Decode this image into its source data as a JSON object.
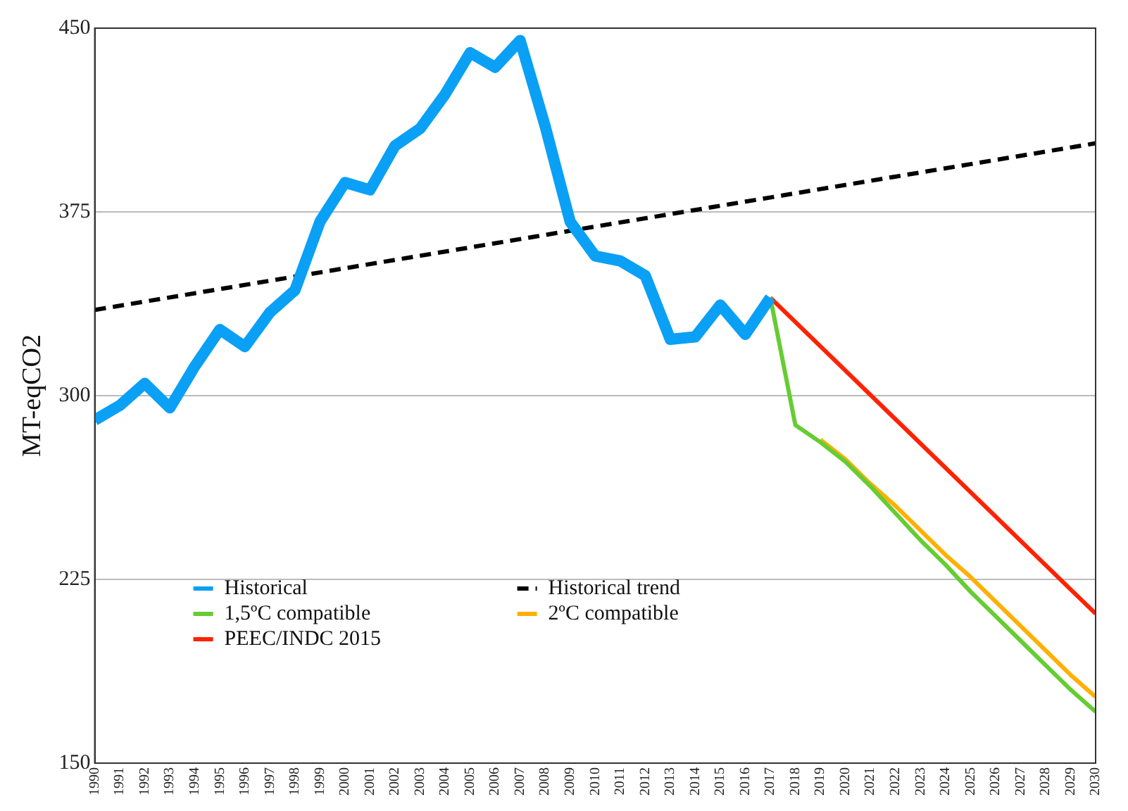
{
  "chart_data": {
    "type": "line",
    "ylabel": "MT-eqCO2",
    "xlim": [
      1990,
      2030
    ],
    "xticks": [
      1990,
      1991,
      1992,
      1993,
      1994,
      1995,
      1996,
      1997,
      1998,
      1999,
      2000,
      2001,
      2002,
      2003,
      2004,
      2005,
      2006,
      2007,
      2008,
      2009,
      2010,
      2011,
      2012,
      2013,
      2014,
      2015,
      2016,
      2017,
      2018,
      2019,
      2020,
      2021,
      2022,
      2023,
      2024,
      2025,
      2026,
      2027,
      2028,
      2029,
      2030
    ],
    "ylim": [
      150,
      450
    ],
    "yticks": [
      150,
      225,
      300,
      375,
      450
    ],
    "grid": "y",
    "legend": "bottom left",
    "marker": "none",
    "series": [
      {
        "name": "Historical",
        "color": "#0aa0f5",
        "x": [
          1990,
          1991,
          1992,
          1993,
          1994,
          1995,
          1996,
          1997,
          1998,
          1999,
          2000,
          2001,
          2002,
          2003,
          2004,
          2005,
          2006,
          2007,
          2008,
          2009,
          2010,
          2011,
          2012,
          2013,
          2014,
          2015,
          2016,
          2017
        ],
        "values": [
          290,
          296,
          305,
          295,
          312,
          327,
          320,
          334,
          343,
          371,
          387,
          384,
          402,
          409,
          423,
          440,
          434,
          445,
          410,
          371,
          357,
          355,
          349,
          323,
          324,
          337,
          325,
          340
        ]
      },
      {
        "name": "1,5ºC compatible",
        "color": "#66cc33",
        "x": [
          2017,
          2018,
          2019,
          2020,
          2021,
          2022,
          2023,
          2024,
          2025,
          2026,
          2027,
          2028,
          2029,
          2030
        ],
        "values": [
          340,
          288,
          281,
          273,
          263,
          252,
          241,
          231,
          220,
          210,
          200,
          190,
          180,
          171
        ]
      },
      {
        "name": "PEEC/INDC 2015",
        "color": "#ff2200",
        "x": [
          2017,
          2030
        ],
        "values": [
          340,
          211
        ]
      },
      {
        "name": "Historical trend",
        "color": "#000000",
        "line_style": "dashed",
        "x": [
          1990,
          2030
        ],
        "values": [
          335,
          403
        ]
      },
      {
        "name": "2ºC compatible",
        "color": "#ffb000",
        "x": [
          2019,
          2020,
          2021,
          2022,
          2023,
          2024,
          2025,
          2026,
          2027,
          2028,
          2029,
          2030
        ],
        "values": [
          282,
          274,
          264,
          255,
          245,
          235,
          226,
          216,
          206,
          196,
          186,
          177
        ]
      }
    ]
  }
}
